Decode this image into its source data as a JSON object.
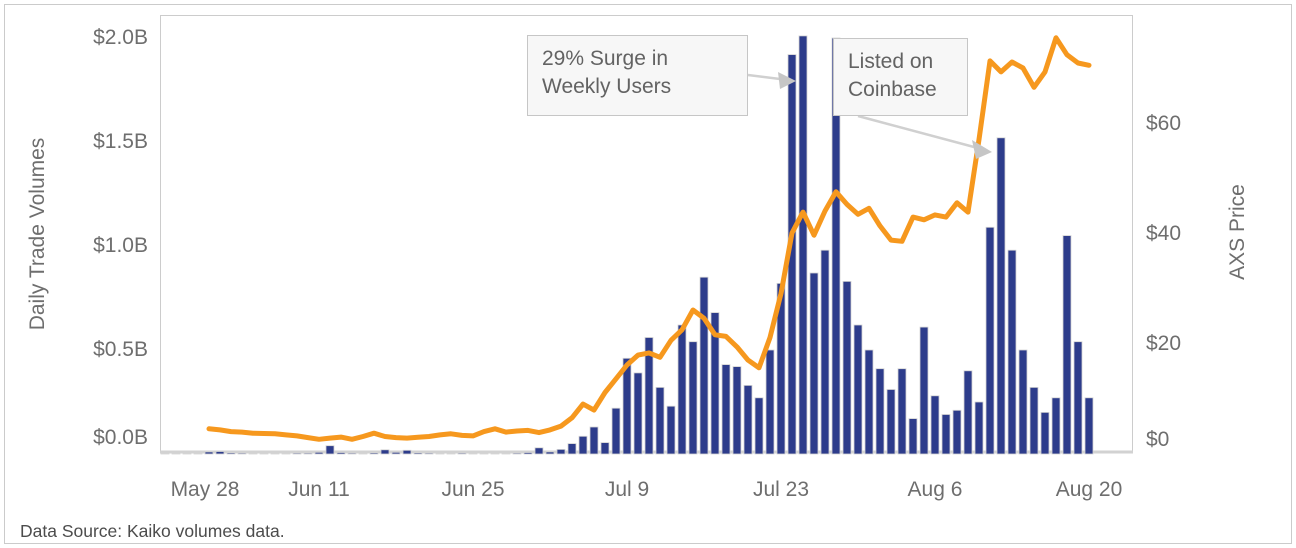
{
  "footer": {
    "source": "Data Source: Kaiko volumes data."
  },
  "chart_data": {
    "type": "bar+line",
    "title": "",
    "grid": false,
    "legend": "none",
    "x": [
      "May 28",
      "May 29",
      "May 30",
      "May 31",
      "Jun 1",
      "Jun 2",
      "Jun 3",
      "Jun 4",
      "Jun 5",
      "Jun 6",
      "Jun 7",
      "Jun 8",
      "Jun 9",
      "Jun 10",
      "Jun 11",
      "Jun 12",
      "Jun 13",
      "Jun 14",
      "Jun 15",
      "Jun 16",
      "Jun 17",
      "Jun 18",
      "Jun 19",
      "Jun 20",
      "Jun 21",
      "Jun 22",
      "Jun 23",
      "Jun 24",
      "Jun 25",
      "Jun 26",
      "Jun 27",
      "Jun 28",
      "Jun 29",
      "Jun 30",
      "Jul 1",
      "Jul 2",
      "Jul 3",
      "Jul 4",
      "Jul 5",
      "Jul 6",
      "Jul 7",
      "Jul 8",
      "Jul 9",
      "Jul 10",
      "Jul 11",
      "Jul 12",
      "Jul 13",
      "Jul 14",
      "Jul 15",
      "Jul 16",
      "Jul 17",
      "Jul 18",
      "Jul 19",
      "Jul 20",
      "Jul 21",
      "Jul 22",
      "Jul 23",
      "Jul 24",
      "Jul 25",
      "Jul 26",
      "Jul 27",
      "Jul 28",
      "Jul 29",
      "Jul 30",
      "Jul 31",
      "Aug 1",
      "Aug 2",
      "Aug 3",
      "Aug 4",
      "Aug 5",
      "Aug 6",
      "Aug 7",
      "Aug 8",
      "Aug 9",
      "Aug 10",
      "Aug 11",
      "Aug 12",
      "Aug 13",
      "Aug 14",
      "Aug 15",
      "Aug 16",
      "Aug 17",
      "Aug 18",
      "Aug 19",
      "Aug 20"
    ],
    "x_ticks": [
      "May 28",
      "Jun 11",
      "Jun 25",
      "Jul 9",
      "Jul 23",
      "Aug 6",
      "Aug 20"
    ],
    "series": [
      {
        "name": "Daily Trade Volumes",
        "type": "bar",
        "axis": "left",
        "unit": "$B",
        "color": "#2d3c8b",
        "values": [
          0.004,
          0.004,
          0.003,
          0.004,
          0.01,
          0.012,
          0.006,
          0.005,
          0.004,
          0.004,
          0.003,
          0.004,
          0.005,
          0.005,
          0.008,
          0.04,
          0.007,
          0.005,
          0.004,
          0.006,
          0.02,
          0.008,
          0.018,
          0.006,
          0.005,
          0.004,
          0.004,
          0.005,
          0.004,
          0.004,
          0.003,
          0.004,
          0.005,
          0.007,
          0.03,
          0.01,
          0.022,
          0.05,
          0.085,
          0.13,
          0.055,
          0.22,
          0.46,
          0.39,
          0.56,
          0.32,
          0.23,
          0.62,
          0.54,
          0.85,
          0.68,
          0.43,
          0.42,
          0.33,
          0.27,
          0.5,
          0.82,
          1.92,
          2.01,
          0.87,
          0.98,
          2.0,
          0.83,
          0.62,
          0.5,
          0.41,
          0.31,
          0.41,
          0.17,
          0.61,
          0.28,
          0.19,
          0.21,
          0.4,
          0.25,
          1.09,
          1.52,
          0.98,
          0.5,
          0.32,
          0.2,
          0.27,
          1.05,
          0.54,
          0.27
        ]
      },
      {
        "name": "AXS Price",
        "type": "line",
        "axis": "right",
        "unit": "$",
        "color": "#f6981e",
        "values": [
          null,
          null,
          null,
          null,
          4.4,
          4.2,
          3.9,
          3.8,
          3.6,
          3.55,
          3.5,
          3.3,
          3.1,
          2.8,
          2.5,
          2.7,
          2.9,
          2.5,
          3.0,
          3.6,
          3.0,
          2.8,
          2.7,
          2.85,
          3.0,
          3.3,
          3.5,
          3.2,
          3.1,
          3.9,
          4.4,
          3.8,
          4.0,
          4.1,
          3.7,
          4.2,
          4.9,
          6.4,
          8.9,
          7.8,
          11.0,
          13.5,
          16.0,
          17.8,
          18.2,
          17.4,
          20.5,
          22.4,
          26.0,
          24.5,
          21.5,
          21.2,
          19.3,
          16.9,
          15.5,
          21.0,
          29.0,
          40.0,
          43.8,
          39.6,
          44.0,
          47.5,
          45.2,
          43.4,
          44.5,
          41.3,
          38.7,
          38.5,
          42.9,
          42.4,
          43.3,
          42.9,
          45.5,
          43.8,
          57.0,
          71.3,
          69.3,
          71.1,
          70.0,
          66.5,
          69.3,
          75.5,
          72.4,
          70.9,
          70.5
        ]
      }
    ],
    "left_axis": {
      "title": "Daily Trade Volumes",
      "ticks": [
        "$0.0B",
        "$0.5B",
        "$1.0B",
        "$1.5B",
        "$2.0B"
      ],
      "tick_values": [
        0.0,
        0.5,
        1.0,
        1.5,
        2.0
      ],
      "range": [
        0,
        2.11
      ]
    },
    "right_axis": {
      "title": "AXS Price",
      "ticks": [
        "$0",
        "$20",
        "$40",
        "$60"
      ],
      "tick_values": [
        0,
        20,
        40,
        60
      ],
      "range": [
        0,
        79.6
      ]
    },
    "annotations": [
      {
        "text": "29% Surge in\nWeekly Users",
        "points_to": "Jul 25 volume spike ($2.0B bar)"
      },
      {
        "text": "Listed on\nCoinbase",
        "points_to": "Aug 10-11 price surge on line"
      }
    ]
  }
}
